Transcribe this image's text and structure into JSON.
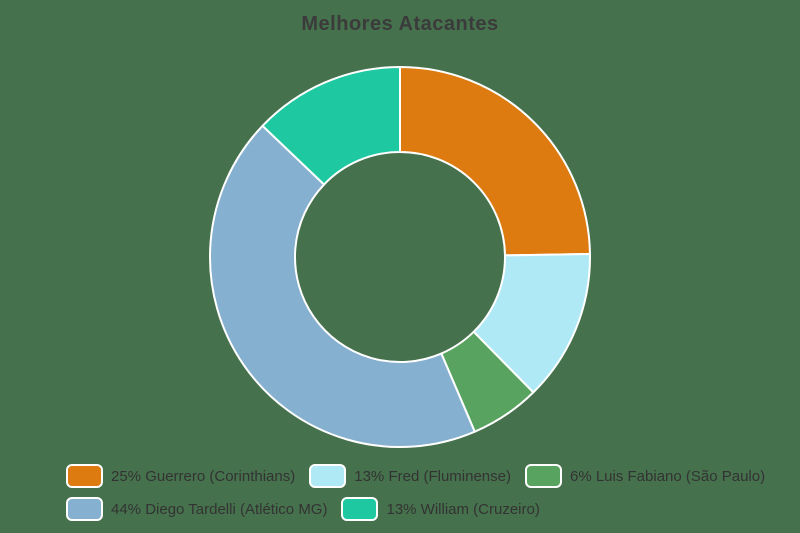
{
  "title": "Melhores Atacantes",
  "colors": {
    "background": "#46714D",
    "slice_stroke": "#FFFFFF",
    "title_text": "#3B3B3B",
    "legend_text": "#333333"
  },
  "chart_data": {
    "type": "pie",
    "variant": "donut",
    "title": "Melhores Atacantes",
    "legend_position": "bottom",
    "direction": "clockwise",
    "start_angle_deg": 0,
    "inner_radius_ratio": 0.553,
    "slices": [
      {
        "label": "Guerrero (Corinthians)",
        "percent": 25,
        "color": "#DD7B10",
        "legend_label": "25% Guerrero (Corinthians)"
      },
      {
        "label": "Fred (Fluminense)",
        "percent": 13,
        "color": "#B0E9F6",
        "legend_label": "13% Fred (Fluminense)"
      },
      {
        "label": "Luis Fabiano (São Paulo)",
        "percent": 6,
        "color": "#58A35F",
        "legend_label": "6% Luis Fabiano (São Paulo)"
      },
      {
        "label": "Diego Tardelli (Atlético MG)",
        "percent": 44,
        "color": "#86B0D0",
        "legend_label": "44% Diego Tardelli (Atlético MG)"
      },
      {
        "label": "William (Cruzeiro)",
        "percent": 13,
        "color": "#1EC8A0",
        "legend_label": "13% William (Cruzeiro)"
      }
    ],
    "legend_rows": [
      [
        0,
        1,
        2
      ],
      [
        3,
        4
      ]
    ]
  }
}
